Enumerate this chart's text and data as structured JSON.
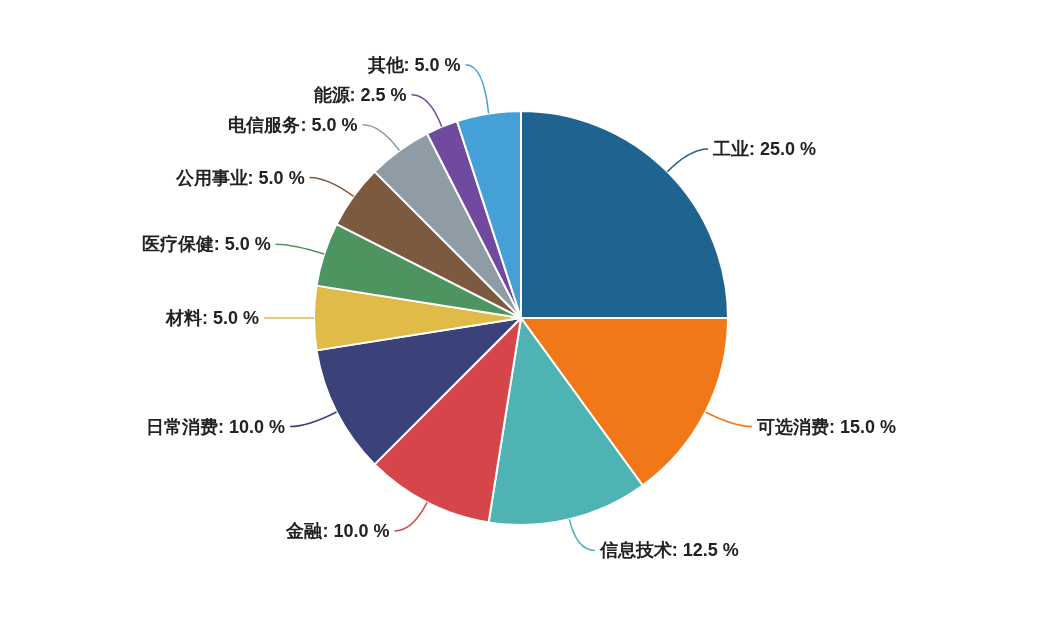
{
  "chart_data": {
    "type": "pie",
    "categories": [
      "工业",
      "可选消费",
      "信息技术",
      "金融",
      "日常消费",
      "材料",
      "医疗保健",
      "公用事业",
      "电信服务",
      "能源",
      "其他"
    ],
    "values": [
      25,
      15,
      12.5,
      10,
      10,
      5,
      5,
      5,
      5,
      2.5,
      5
    ],
    "value_labels": [
      "25.0 %",
      "15.0 %",
      "12.5 %",
      "10.0 %",
      "10.0 %",
      "5.0 %",
      "5.0 %",
      "5.0 %",
      "5.0 %",
      "2.5 %",
      "5.0 %"
    ],
    "colors": [
      "#1f6391",
      "#f07818",
      "#4fb3b3",
      "#d6454a",
      "#3a4279",
      "#e0bb48",
      "#4e9460",
      "#7b5a40",
      "#8f9ba5",
      "#6f4a9e",
      "#45a0d8"
    ],
    "legend": false
  }
}
